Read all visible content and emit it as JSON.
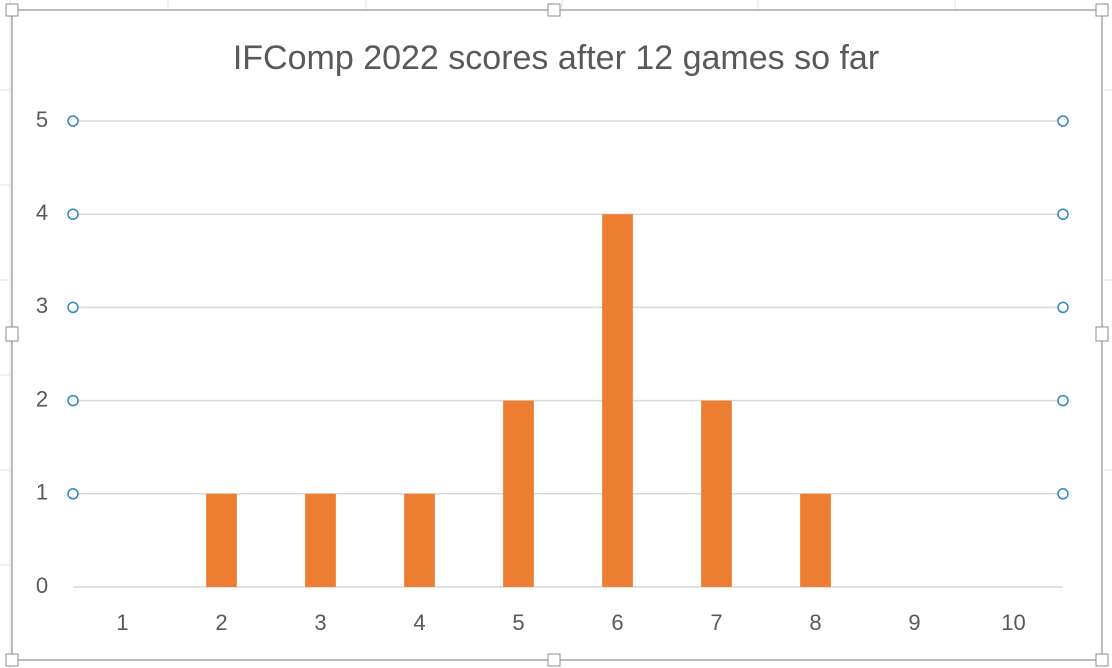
{
  "chart_data": {
    "type": "bar",
    "title": "IFComp 2022 scores after 12 games so far",
    "categories": [
      "1",
      "2",
      "3",
      "4",
      "5",
      "6",
      "7",
      "8",
      "9",
      "10"
    ],
    "values": [
      0,
      1,
      1,
      1,
      2,
      4,
      2,
      1,
      0,
      0
    ],
    "color": "#ed7d31",
    "ylim": [
      0,
      5
    ],
    "yticks": [
      0,
      1,
      2,
      3,
      4,
      5
    ],
    "grid": true
  }
}
